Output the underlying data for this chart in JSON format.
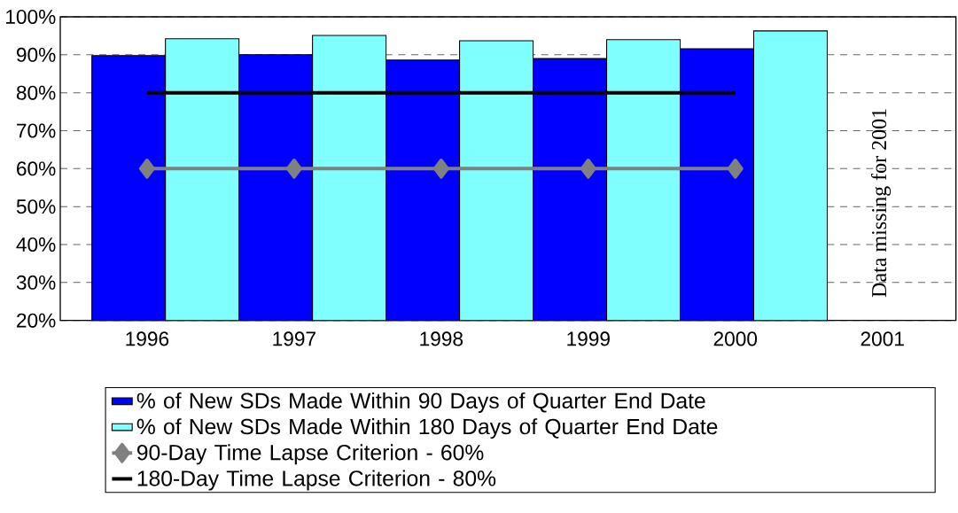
{
  "chart_data": {
    "type": "bar",
    "categories": [
      "1996",
      "1997",
      "1998",
      "1999",
      "2000",
      "2001"
    ],
    "series": [
      {
        "name": "% of New SDs Made Within 90 Days of Quarter End Date",
        "color": "#0000ff",
        "values": [
          89.8,
          90.0,
          88.6,
          89.0,
          91.6,
          null
        ]
      },
      {
        "name": "% of New SDs Made Within 180 Days of Quarter End Date",
        "color": "#80ffff",
        "values": [
          94.2,
          95.1,
          93.7,
          94.0,
          96.3,
          null
        ]
      },
      {
        "name": "90-Day Time Lapse Criterion - 60%",
        "type": "line",
        "color": "#808080",
        "marker": "diamond",
        "values": [
          60,
          60,
          60,
          60,
          60,
          null
        ]
      },
      {
        "name": "180-Day Time Lapse Criterion - 80%",
        "type": "line",
        "color": "#000000",
        "values": [
          80,
          80,
          80,
          80,
          80,
          null
        ]
      }
    ],
    "ylim": [
      20,
      100
    ],
    "yticks": [
      {
        "value": 20,
        "label": "20%"
      },
      {
        "value": 30,
        "label": "30%"
      },
      {
        "value": 40,
        "label": "40%"
      },
      {
        "value": 50,
        "label": "50%"
      },
      {
        "value": 60,
        "label": "60%"
      },
      {
        "value": 70,
        "label": "70%"
      },
      {
        "value": 80,
        "label": "80%"
      },
      {
        "value": 90,
        "label": "90%"
      },
      {
        "value": 100,
        "label": "100%"
      }
    ],
    "grid": "y",
    "legend": "bottom",
    "annotations": [
      "Data missing for 2001"
    ]
  }
}
